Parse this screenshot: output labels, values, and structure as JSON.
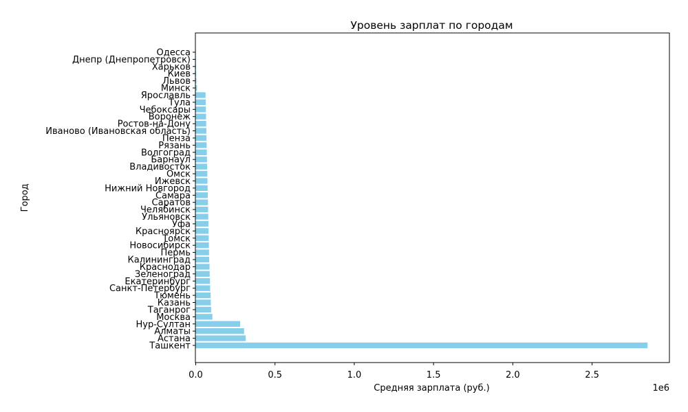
{
  "chart_data": {
    "type": "bar",
    "orientation": "horizontal",
    "title": "Уровень зарплат по городам",
    "xlabel": "Средняя зарплата (руб.)",
    "ylabel": "Город",
    "x_multiplier_label": "1e6",
    "x_ticks": [
      "0.0",
      "0.5",
      "1.0",
      "1.5",
      "2.0",
      "2.5"
    ],
    "x_tick_values": [
      0,
      500000,
      1000000,
      1500000,
      2000000,
      2500000
    ],
    "xlim": [
      0,
      2990000
    ],
    "grid": false,
    "bar_color": "#87ceeb",
    "categories": [
      "Ташкент",
      "Астана",
      "Алматы",
      "Нур-Султан",
      "Москва",
      "Таганрог",
      "Казань",
      "Тюмень",
      "Санкт-Петербург",
      "Екатеринбург",
      "Зеленоград",
      "Краснодар",
      "Калининград",
      "Пермь",
      "Новосибирск",
      "Томск",
      "Красноярск",
      "Уфа",
      "Ульяновск",
      "Челябинск",
      "Саратов",
      "Самара",
      "Нижний Новгород",
      "Ижевск",
      "Омск",
      "Владивосток",
      "Барнаул",
      "Волгоград",
      "Рязань",
      "Пенза",
      "Иваново (Ивановская область)",
      "Ростов-на-Дону",
      "Воронеж",
      "Чебоксары",
      "Тула",
      "Ярославль",
      "Минск",
      "Львов",
      "Киев",
      "Харьков",
      "Днепр (Днепропетровск)",
      "Одесса"
    ],
    "values": [
      2850000,
      315000,
      305000,
      280000,
      105000,
      97000,
      95000,
      94000,
      91000,
      90000,
      88000,
      87000,
      85000,
      84000,
      83000,
      82000,
      81000,
      80000,
      79000,
      78000,
      77000,
      76000,
      75000,
      74000,
      73000,
      72000,
      71000,
      70000,
      69000,
      68000,
      67000,
      66000,
      65000,
      64000,
      63000,
      62000,
      8000,
      4000,
      3000,
      2000,
      1000,
      500
    ]
  }
}
